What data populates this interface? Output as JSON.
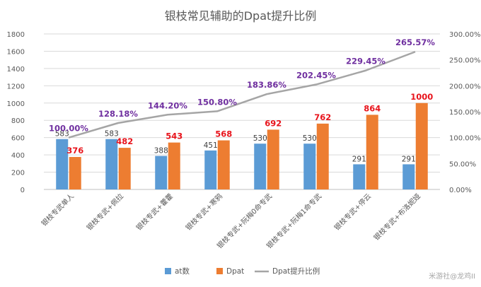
{
  "chart_data": {
    "type": "bar",
    "title": "银枝常见辅助的Dpat提升比例",
    "categories": [
      "银枝专武单人",
      "银枝专武+佩拉",
      "银枝专武+藿藿",
      "银枝专武+寒鸦",
      "银枝专武+阮梅0命专武",
      "银枝专武+阮梅1命专武",
      "银枝专武+停云",
      "银枝专武+布洛妮娅"
    ],
    "series": [
      {
        "name": "at数",
        "type": "bar",
        "axis": "left",
        "color": "#5b9bd5",
        "values": [
          583,
          583,
          388,
          451,
          530,
          530,
          291,
          291
        ]
      },
      {
        "name": "Dpat",
        "type": "bar",
        "axis": "left",
        "color": "#ed7d31",
        "values": [
          376,
          482,
          543,
          568,
          692,
          762,
          864,
          1000
        ]
      },
      {
        "name": "Dpat提升比例",
        "type": "line",
        "axis": "right",
        "color": "#a5a5a5",
        "values": [
          100.0,
          128.18,
          144.2,
          150.8,
          183.86,
          202.45,
          229.45,
          265.57
        ]
      }
    ],
    "left_axis": {
      "min": 0,
      "max": 1800,
      "step": 200,
      "ticks": [
        "0",
        "200",
        "400",
        "600",
        "800",
        "1000",
        "1200",
        "1400",
        "1600",
        "1800"
      ]
    },
    "right_axis": {
      "min": 0,
      "max": 300,
      "step": 50,
      "ticks": [
        "0.00%",
        "50.00%",
        "100.00%",
        "150.00%",
        "200.00%",
        "250.00%",
        "300.00%"
      ]
    },
    "bar_labels": {
      "at": [
        "583",
        "583",
        "388",
        "451",
        "530",
        "530",
        "291",
        "291"
      ],
      "dpat": [
        "376",
        "482",
        "543",
        "568",
        "692",
        "762",
        "864",
        "1000"
      ],
      "at_color": "#404040",
      "dpat_color": "#e8141c"
    },
    "line_labels": [
      "100.00%",
      "128.18%",
      "144.20%",
      "150.80%",
      "183.86%",
      "202.45%",
      "229.45%",
      "265.57%"
    ],
    "line_label_color": "#7030a0",
    "grid": true,
    "legend_position": "bottom",
    "legend": [
      "at数",
      "Dpat",
      "Dpat提升比例"
    ]
  },
  "watermark": "米游社@龙鸡II"
}
